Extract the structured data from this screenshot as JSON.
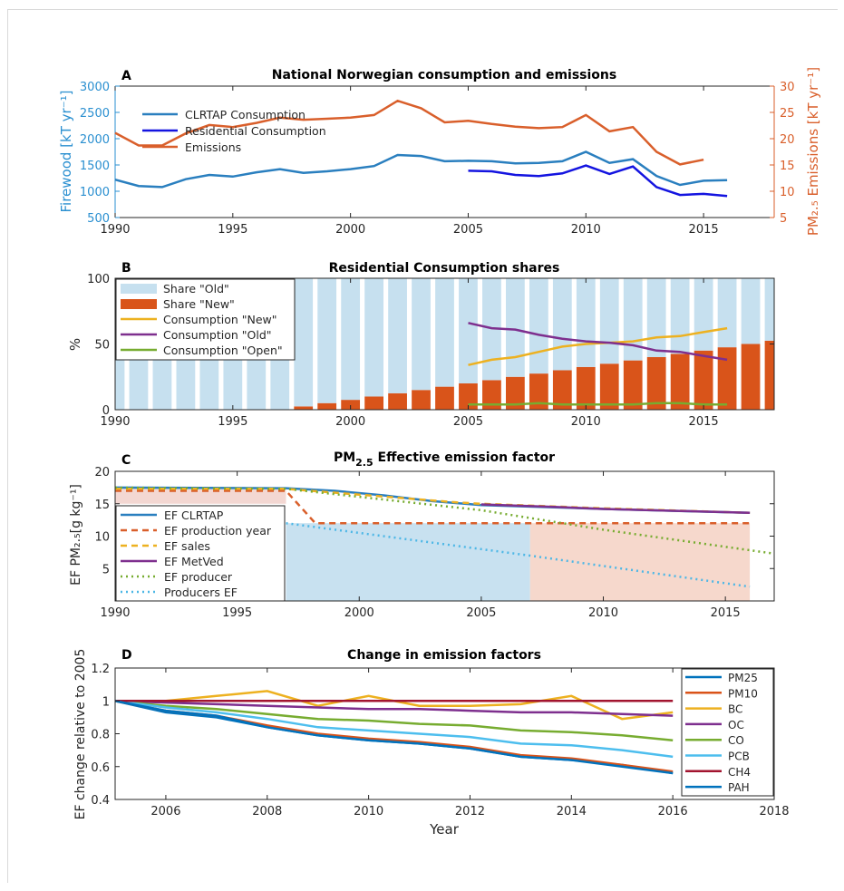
{
  "chart_data": [
    {
      "panel": "A",
      "type": "line",
      "title": "National Norwegian consumption and emissions",
      "ylabel_left": "Firewood [kT yr⁻¹]",
      "ylabel_right": "PM₂.₅ Emissions [kT yr⁻¹]",
      "xlim": [
        1990,
        2018
      ],
      "ylim_left": [
        500,
        3000
      ],
      "ylim_right": [
        5,
        30
      ],
      "x_ticks": [
        1990,
        1995,
        2000,
        2005,
        2010,
        2015
      ],
      "y_ticks_left": [
        500,
        1000,
        1500,
        2000,
        2500,
        3000
      ],
      "y_ticks_right": [
        5,
        10,
        15,
        20,
        25,
        30
      ],
      "legend_position": "upper-left",
      "colors": {
        "clrtap": "#2a7fbf",
        "residential": "#1414e0",
        "emissions": "#d95f2b",
        "left_axis": "#2a8fd0",
        "right_axis": "#d95f2b"
      },
      "series": [
        {
          "name": "CLRTAP Consumption",
          "axis": "left",
          "x": [
            1990,
            1991,
            1992,
            1993,
            1994,
            1995,
            1996,
            1997,
            1998,
            1999,
            2000,
            2001,
            2002,
            2003,
            2004,
            2005,
            2006,
            2007,
            2008,
            2009,
            2010,
            2011,
            2012,
            2013,
            2014,
            2015,
            2016
          ],
          "values": [
            1220,
            1100,
            1080,
            1230,
            1310,
            1280,
            1360,
            1420,
            1350,
            1380,
            1420,
            1480,
            1690,
            1670,
            1570,
            1580,
            1570,
            1530,
            1540,
            1570,
            1750,
            1540,
            1610,
            1290,
            1120,
            1200,
            1210
          ]
        },
        {
          "name": "Residential Consumption",
          "axis": "left",
          "x": [
            2005,
            2006,
            2007,
            2008,
            2009,
            2010,
            2011,
            2012,
            2013,
            2014,
            2015,
            2016
          ],
          "values": [
            1390,
            1380,
            1310,
            1290,
            1340,
            1490,
            1330,
            1470,
            1080,
            930,
            950,
            910
          ]
        },
        {
          "name": "Emissions",
          "axis": "right",
          "x": [
            1990,
            1991,
            1992,
            1993,
            1994,
            1995,
            1996,
            1997,
            1998,
            1999,
            2000,
            2001,
            2002,
            2003,
            2004,
            2005,
            2006,
            2007,
            2008,
            2009,
            2010,
            2011,
            2012,
            2013,
            2014,
            2015
          ],
          "values": [
            21.1,
            18.7,
            18.7,
            21.0,
            22.6,
            22.2,
            23.0,
            24.0,
            23.6,
            23.8,
            24.0,
            24.5,
            27.2,
            25.8,
            23.1,
            23.4,
            22.8,
            22.3,
            22.0,
            22.2,
            24.5,
            21.4,
            22.2,
            17.5,
            15.1,
            16.0
          ]
        }
      ]
    },
    {
      "panel": "B",
      "type": "bar",
      "title": "Residential Consumption shares",
      "ylabel": "%",
      "xlim": [
        1990,
        2018
      ],
      "ylim": [
        0,
        100
      ],
      "x_ticks": [
        1990,
        1995,
        2000,
        2005,
        2010,
        2015
      ],
      "y_ticks": [
        0,
        50,
        100
      ],
      "legend_position": "upper-left",
      "colors": {
        "old": "#c6e0ef",
        "new": "#d9541a",
        "cons_new": "#edb120",
        "cons_old": "#7e2f8e",
        "cons_open": "#77ac30"
      },
      "bars": {
        "x": [
          1990,
          1991,
          1992,
          1993,
          1994,
          1995,
          1996,
          1997,
          1998,
          1999,
          2000,
          2001,
          2002,
          2003,
          2004,
          2005,
          2006,
          2007,
          2008,
          2009,
          2010,
          2011,
          2012,
          2013,
          2014,
          2015,
          2016,
          2017,
          2018
        ],
        "series": [
          {
            "name": "Share \"Old\"",
            "values": [
              100,
              100,
              100,
              100,
              100,
              100,
              100,
              100,
              97.5,
              95,
              92.5,
              90,
              87.5,
              85,
              82.5,
              80,
              77.5,
              75,
              72.5,
              70,
              67.5,
              65,
              62.5,
              60,
              57.5,
              55,
              52.5,
              50,
              47.5
            ]
          },
          {
            "name": "Share \"New\"",
            "values": [
              0,
              0,
              0,
              0,
              0,
              0,
              0,
              0,
              2.5,
              5,
              7.5,
              10,
              12.5,
              15,
              17.5,
              20,
              22.5,
              25,
              27.5,
              30,
              32.5,
              35,
              37.5,
              40,
              42.5,
              45,
              47.5,
              50,
              52.5
            ]
          }
        ]
      },
      "series": [
        {
          "name": "Consumption \"New\"",
          "x": [
            2005,
            2006,
            2007,
            2008,
            2009,
            2010,
            2011,
            2012,
            2013,
            2014,
            2015,
            2016
          ],
          "values": [
            34,
            38,
            40,
            44,
            48,
            50,
            51,
            52,
            55,
            56,
            59,
            62
          ]
        },
        {
          "name": "Consumption \"Old\"",
          "x": [
            2005,
            2006,
            2007,
            2008,
            2009,
            2010,
            2011,
            2012,
            2013,
            2014,
            2015,
            2016
          ],
          "values": [
            66,
            62,
            61,
            57,
            54,
            52,
            51,
            49,
            45,
            44,
            41,
            38
          ]
        },
        {
          "name": "Consumption \"Open\"",
          "x": [
            2005,
            2006,
            2007,
            2008,
            2009,
            2010,
            2011,
            2012,
            2013,
            2014,
            2015,
            2016
          ],
          "values": [
            4,
            4,
            4,
            5,
            4,
            4,
            4,
            4,
            5,
            5,
            4,
            4
          ]
        }
      ]
    },
    {
      "panel": "C",
      "type": "line",
      "title": "PM",
      "title_sub": "2.5",
      "title_rest": " Effective emission factor",
      "ylabel": "EF PM₂.₅[g kg⁻¹]",
      "xlim": [
        1990,
        2017
      ],
      "ylim": [
        0,
        20
      ],
      "x_ticks": [
        1990,
        1995,
        2000,
        2005,
        2010,
        2015
      ],
      "y_ticks": [
        5,
        10,
        15,
        20
      ],
      "legend_position": "lower-left",
      "shaded_regions": [
        {
          "x0": 1990,
          "x1": 1997,
          "y0": 15,
          "y1": 17.5,
          "color": "#f3d7d2"
        },
        {
          "x0": 1997,
          "x1": 2007,
          "y0": 0,
          "y1": 12,
          "color": "#c8e1f0"
        },
        {
          "x0": 2007,
          "x1": 2016,
          "y0": 0,
          "y1": 12,
          "color": "#f6d8cc"
        }
      ],
      "colors": {
        "clrtap": "#2a7fbf",
        "prod_year": "#d95f2b",
        "sales": "#edb120",
        "metved": "#7e2f8e",
        "producer": "#77ac30",
        "producers_ef": "#4db7e6"
      },
      "series": [
        {
          "name": "EF CLRTAP",
          "dash": "solid",
          "x": [
            1990,
            1997,
            1999,
            2001,
            2003,
            2005,
            2010,
            2016
          ],
          "values": [
            17.5,
            17.4,
            17.0,
            16.3,
            15.4,
            14.8,
            14.2,
            13.6
          ]
        },
        {
          "name": "EF production year",
          "dash": "dashed",
          "x": [
            1990,
            1997,
            1998.2,
            2016
          ],
          "values": [
            17.0,
            17.0,
            12.0,
            12.0
          ]
        },
        {
          "name": "EF sales",
          "dash": "dashed",
          "x": [
            1990,
            1997,
            2000,
            2004,
            2005,
            2010,
            2016
          ],
          "values": [
            17.3,
            17.3,
            16.4,
            15.2,
            15.0,
            14.3,
            13.6
          ]
        },
        {
          "name": "EF MetVed",
          "dash": "solid",
          "x": [
            2005,
            2008,
            2010,
            2013,
            2016
          ],
          "values": [
            14.9,
            14.5,
            14.2,
            13.9,
            13.6
          ]
        },
        {
          "name": "EF producer",
          "dash": "dotted",
          "x": [
            1990,
            1997,
            2005,
            2010,
            2017
          ],
          "values": [
            17.5,
            17.3,
            14.0,
            11.0,
            7.3
          ]
        },
        {
          "name": "Producers EF",
          "dash": "dotted",
          "x": [
            1997,
            2007,
            2016
          ],
          "values": [
            12.0,
            7.0,
            2.2
          ]
        }
      ]
    },
    {
      "panel": "D",
      "type": "line",
      "title": "Change in emission factors",
      "xlabel": "Year",
      "ylabel": "EF change relative to 2005",
      "xlim": [
        2005,
        2018
      ],
      "ylim": [
        0.4,
        1.2
      ],
      "x_ticks": [
        2006,
        2008,
        2010,
        2012,
        2014,
        2016,
        2018
      ],
      "y_ticks": [
        0.4,
        0.6,
        0.8,
        1,
        1.2
      ],
      "legend_position": "right",
      "series": [
        {
          "name": "PM25",
          "color": "#0072bd",
          "x": [
            2005,
            2006,
            2007,
            2008,
            2009,
            2010,
            2011,
            2012,
            2013,
            2014,
            2015,
            2016
          ],
          "values": [
            1.0,
            0.93,
            0.9,
            0.84,
            0.79,
            0.76,
            0.74,
            0.71,
            0.66,
            0.64,
            0.61,
            0.56
          ]
        },
        {
          "name": "PM10",
          "color": "#d95319",
          "x": [
            2005,
            2006,
            2007,
            2008,
            2009,
            2010,
            2011,
            2012,
            2013,
            2014,
            2015,
            2016
          ],
          "values": [
            1.0,
            0.94,
            0.91,
            0.85,
            0.8,
            0.77,
            0.75,
            0.72,
            0.67,
            0.65,
            0.61,
            0.57
          ]
        },
        {
          "name": "BC",
          "color": "#edb120",
          "x": [
            2005,
            2006,
            2007,
            2008,
            2009,
            2010,
            2011,
            2012,
            2013,
            2014,
            2015,
            2016
          ],
          "values": [
            1.0,
            1.0,
            1.03,
            1.06,
            0.97,
            1.03,
            0.97,
            0.97,
            0.98,
            1.03,
            0.89,
            0.93
          ]
        },
        {
          "name": "OC",
          "color": "#7e2f8e",
          "x": [
            2005,
            2006,
            2007,
            2008,
            2009,
            2010,
            2011,
            2012,
            2013,
            2014,
            2015,
            2016
          ],
          "values": [
            1.0,
            0.99,
            0.98,
            0.97,
            0.96,
            0.95,
            0.95,
            0.94,
            0.93,
            0.93,
            0.92,
            0.91
          ]
        },
        {
          "name": "CO",
          "color": "#77ac30",
          "x": [
            2005,
            2006,
            2007,
            2008,
            2009,
            2010,
            2011,
            2012,
            2013,
            2014,
            2015,
            2016
          ],
          "values": [
            1.0,
            0.97,
            0.95,
            0.92,
            0.89,
            0.88,
            0.86,
            0.85,
            0.82,
            0.81,
            0.79,
            0.76
          ]
        },
        {
          "name": "PCB",
          "color": "#4dbeee",
          "x": [
            2005,
            2006,
            2007,
            2008,
            2009,
            2010,
            2011,
            2012,
            2013,
            2014,
            2015,
            2016
          ],
          "values": [
            1.0,
            0.96,
            0.93,
            0.89,
            0.84,
            0.82,
            0.8,
            0.78,
            0.74,
            0.73,
            0.7,
            0.66
          ]
        },
        {
          "name": "CH4",
          "color": "#a2142f",
          "x": [
            2005,
            2016
          ],
          "values": [
            1.0,
            1.0
          ]
        },
        {
          "name": "PAH",
          "color": "#0072bd",
          "x": [
            2005,
            2006,
            2007,
            2008,
            2009,
            2010,
            2011,
            2012,
            2013,
            2014,
            2015,
            2016
          ],
          "values": [
            1.0,
            0.94,
            0.91,
            0.84,
            0.79,
            0.76,
            0.74,
            0.71,
            0.66,
            0.64,
            0.6,
            0.56
          ]
        }
      ]
    }
  ],
  "panel_labels": [
    "A",
    "B",
    "C",
    "D"
  ]
}
